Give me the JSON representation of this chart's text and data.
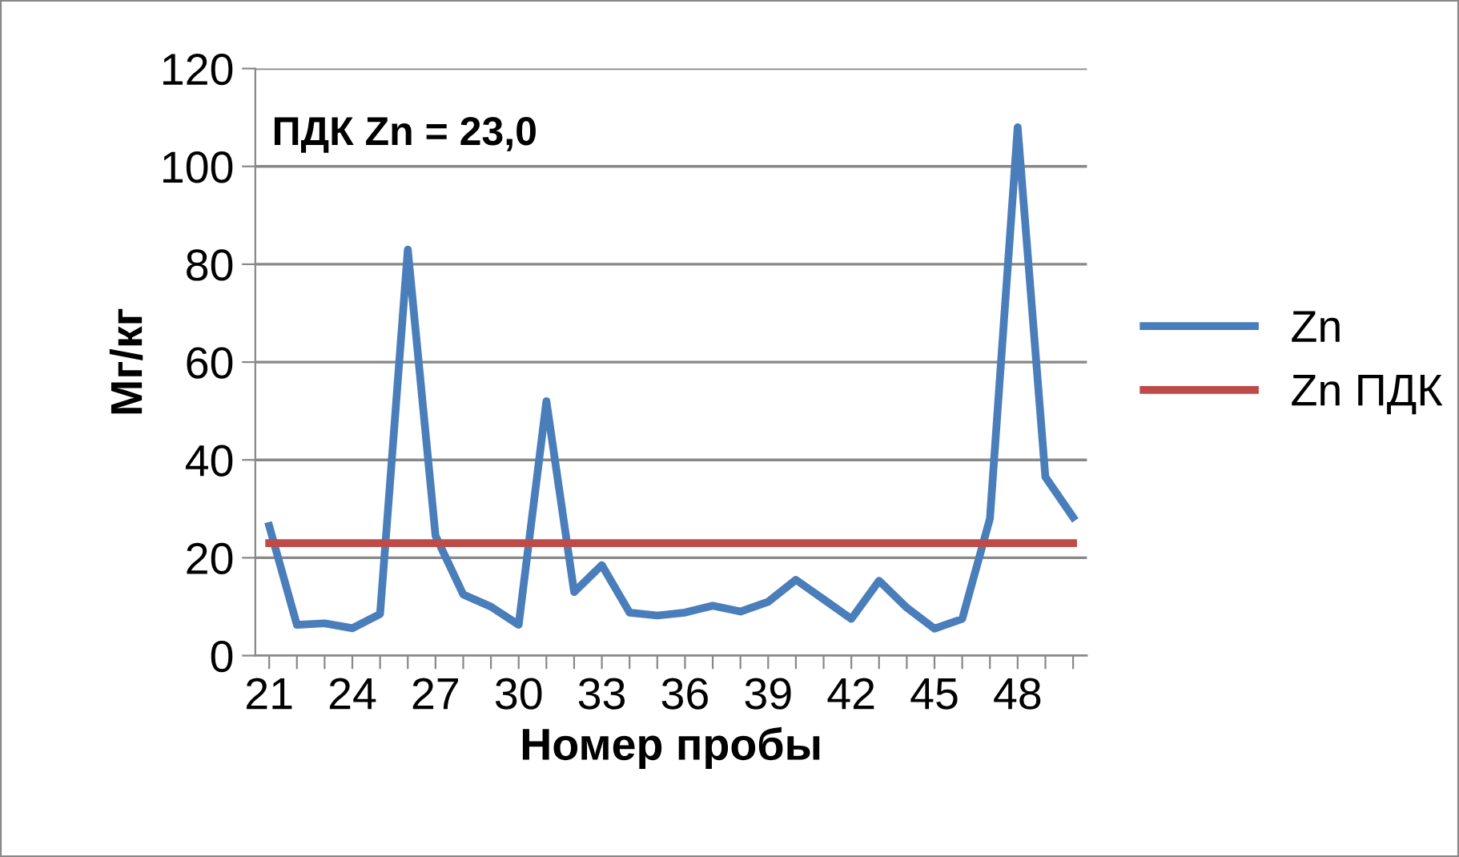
{
  "chart_data": {
    "type": "line",
    "xlabel": "Номер пробы",
    "ylabel": "Мг/кг",
    "categories": [
      "21",
      null,
      null,
      "24",
      null,
      null,
      "27",
      null,
      null,
      "30",
      null,
      null,
      "33",
      null,
      null,
      "36",
      null,
      null,
      "39",
      null,
      null,
      "42",
      null,
      null,
      "45",
      null,
      null,
      "48",
      null,
      null
    ],
    "series": [
      {
        "name": "Zn",
        "color": "#4a7ebb",
        "values": [
          26.5,
          6.3,
          6.6,
          5.6,
          8.5,
          83,
          24.5,
          12.5,
          10,
          6.3,
          52,
          13,
          18.5,
          8.8,
          8.2,
          8.8,
          10.2,
          9,
          11,
          15.5,
          11.5,
          7.5,
          15.3,
          9.8,
          5.5,
          7.5,
          28,
          108,
          36.5,
          28.3
        ]
      },
      {
        "name": "Zn ПДК",
        "color": "#be4b48",
        "values": [
          23,
          23,
          23,
          23,
          23,
          23,
          23,
          23,
          23,
          23,
          23,
          23,
          23,
          23,
          23,
          23,
          23,
          23,
          23,
          23,
          23,
          23,
          23,
          23,
          23,
          23,
          23,
          23,
          23,
          23
        ]
      }
    ],
    "ylim": [
      0,
      120
    ],
    "yticks": [
      0,
      20,
      40,
      60,
      80,
      100,
      120
    ],
    "grid": "y",
    "legend": "right",
    "marker": "none",
    "line_style": "solid",
    "annotations": [
      "ПДК Zn = 23,0"
    ]
  }
}
